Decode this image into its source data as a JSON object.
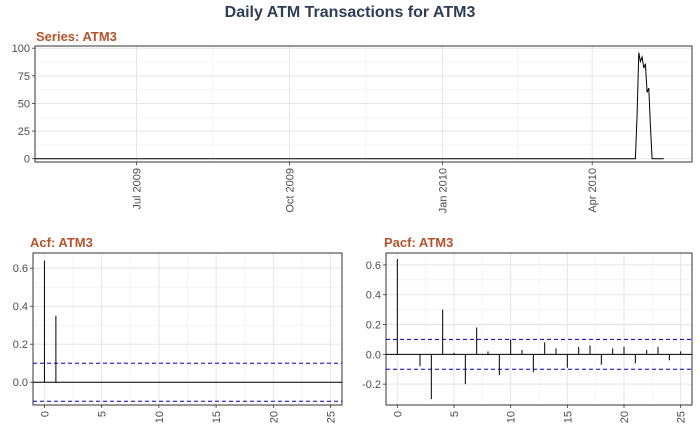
{
  "title": "Daily ATM Transactions for ATM3",
  "chart_data": [
    {
      "panel": "series",
      "type": "line",
      "title": "Series: ATM3",
      "x_range": [
        "2009-05-01",
        "2010-05-31"
      ],
      "ylim": [
        -3,
        102
      ],
      "y_ticks": [
        0,
        25,
        50,
        75,
        100
      ],
      "x_ticks": [
        {
          "date": "2009-07-01",
          "label": "Jul 2009"
        },
        {
          "date": "2009-10-01",
          "label": "Oct 2009"
        },
        {
          "date": "2010-01-01",
          "label": "Jan 2010"
        },
        {
          "date": "2010-04-01",
          "label": "Apr 2010"
        }
      ],
      "series": [
        {
          "x": [
            "2009-05-01",
            "2010-04-27",
            "2010-04-28",
            "2010-04-29",
            "2010-04-30",
            "2010-05-01",
            "2010-05-02",
            "2010-05-03",
            "2010-05-04",
            "2010-05-05",
            "2010-05-06",
            "2010-05-07",
            "2010-05-08",
            "2010-05-09",
            "2010-05-10",
            "2010-05-14"
          ],
          "y": [
            0,
            0,
            40,
            96,
            88,
            92,
            82,
            86,
            60,
            64,
            30,
            0,
            0,
            0,
            0,
            0
          ]
        }
      ],
      "grid": true
    },
    {
      "panel": "acf",
      "type": "bar",
      "title": "Acf: ATM3",
      "xlim": [
        -1,
        26
      ],
      "ylim": [
        -0.12,
        0.68
      ],
      "x_ticks": [
        0,
        5,
        10,
        15,
        20,
        25
      ],
      "y_ticks": [
        0.0,
        0.2,
        0.4,
        0.6
      ],
      "y_tick_labels": [
        "0.0",
        "0.2",
        "0.4",
        "0.6"
      ],
      "lags": [
        0,
        1
      ],
      "values": [
        0.64,
        0.35
      ],
      "confidence_bound": 0.1,
      "grid": true
    },
    {
      "panel": "pacf",
      "type": "bar",
      "title": "Pacf: ATM3",
      "xlim": [
        -1,
        26
      ],
      "ylim": [
        -0.34,
        0.68
      ],
      "x_ticks": [
        0,
        5,
        10,
        15,
        20,
        25
      ],
      "y_ticks": [
        -0.2,
        0.0,
        0.2,
        0.4,
        0.6
      ],
      "y_tick_labels": [
        "-0.2",
        "0.0",
        "0.2",
        "0.4",
        "0.6"
      ],
      "lags": [
        0,
        1,
        2,
        3,
        4,
        5,
        6,
        7,
        8,
        9,
        10,
        11,
        12,
        13,
        14,
        15,
        16,
        17,
        18,
        19,
        20,
        21,
        22,
        23,
        24,
        25
      ],
      "values": [
        0.64,
        0.0,
        -0.08,
        -0.3,
        0.3,
        0.01,
        -0.2,
        0.18,
        0.02,
        -0.14,
        0.1,
        0.03,
        -0.12,
        0.08,
        0.04,
        -0.09,
        0.05,
        0.06,
        -0.07,
        0.04,
        0.05,
        -0.06,
        0.03,
        0.05,
        -0.04,
        0.02
      ],
      "confidence_bound": 0.1,
      "grid": true
    }
  ]
}
